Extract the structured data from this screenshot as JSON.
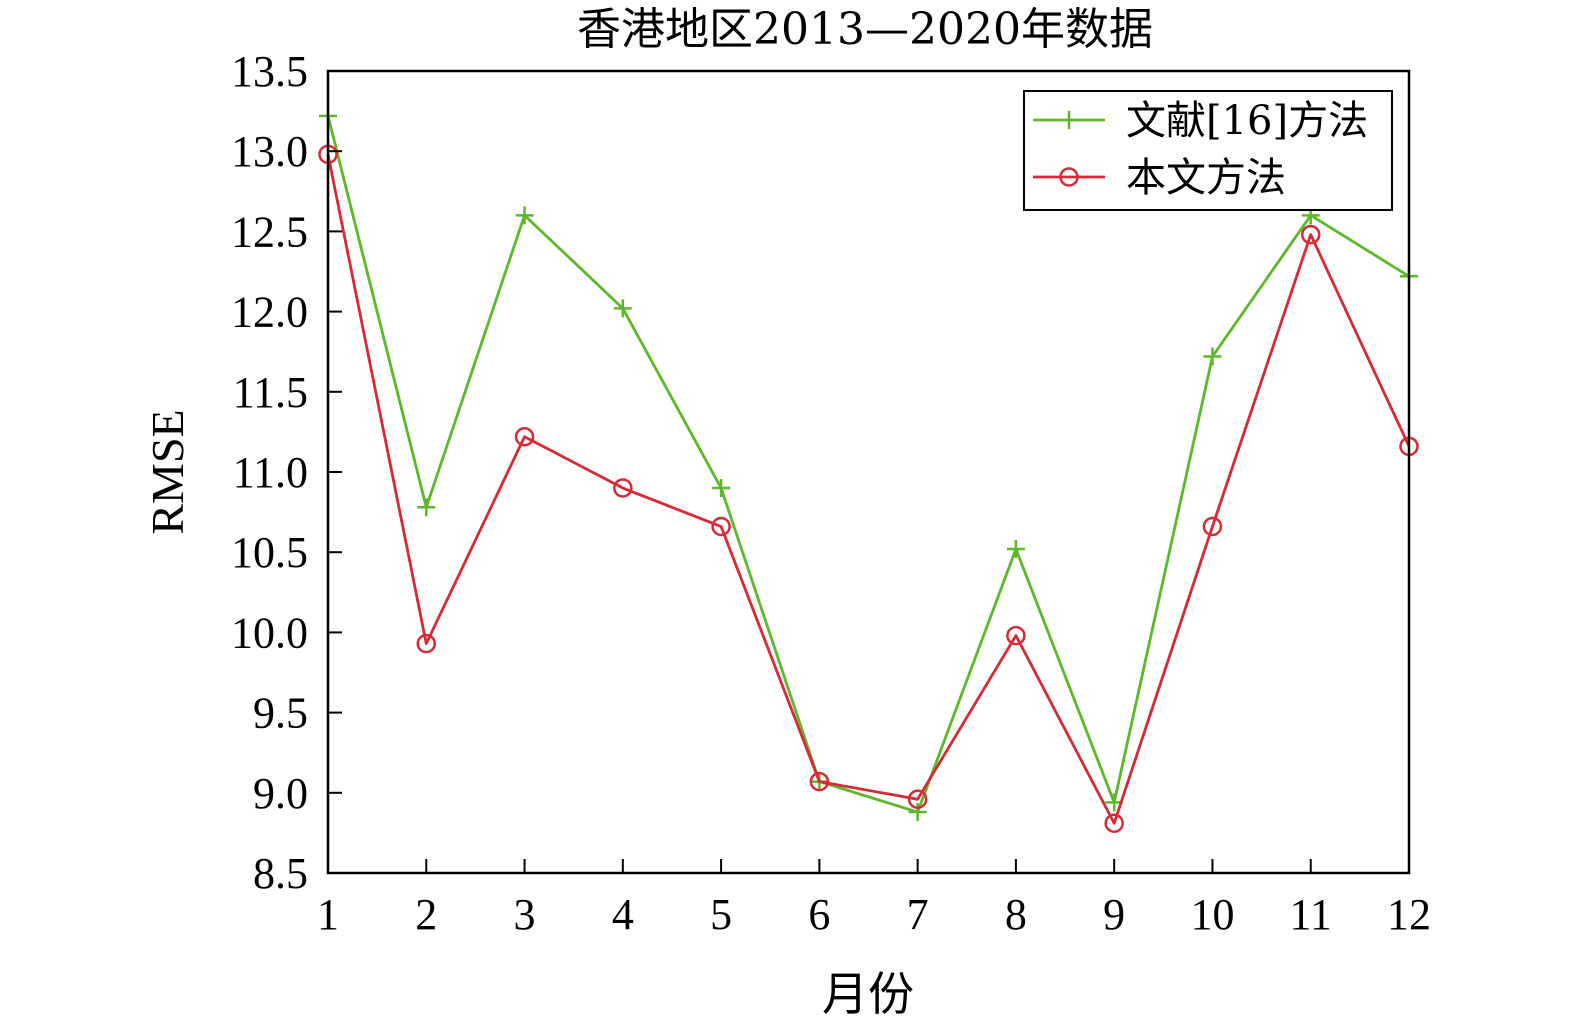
{
  "chart_data": {
    "type": "line",
    "title": "香港地区2013—2020年数据",
    "xlabel": "月份",
    "ylabel": "RMSE",
    "x": [
      1,
      2,
      3,
      4,
      5,
      6,
      7,
      8,
      9,
      10,
      11,
      12
    ],
    "xlim": [
      1,
      12
    ],
    "ylim": [
      8.5,
      13.5
    ],
    "yticks": [
      "8.5",
      "9.0",
      "9.5",
      "10.0",
      "10.5",
      "11.0",
      "11.5",
      "12.0",
      "12.5",
      "13.0",
      "13.5"
    ],
    "xticks": [
      "1",
      "2",
      "3",
      "4",
      "5",
      "6",
      "7",
      "8",
      "9",
      "10",
      "11",
      "12"
    ],
    "grid": false,
    "legend_position": "top-right",
    "series": [
      {
        "name": "文献[16]方法",
        "color": "#5cb82a",
        "marker": "plus",
        "values": [
          13.22,
          10.78,
          12.6,
          12.02,
          10.9,
          9.07,
          8.88,
          10.52,
          8.94,
          11.72,
          12.6,
          12.22
        ]
      },
      {
        "name": "本文方法",
        "color": "#d62a36",
        "marker": "circle",
        "values": [
          12.98,
          9.93,
          11.22,
          10.9,
          10.66,
          9.07,
          8.96,
          9.98,
          8.81,
          10.66,
          12.48,
          11.16
        ]
      }
    ]
  }
}
